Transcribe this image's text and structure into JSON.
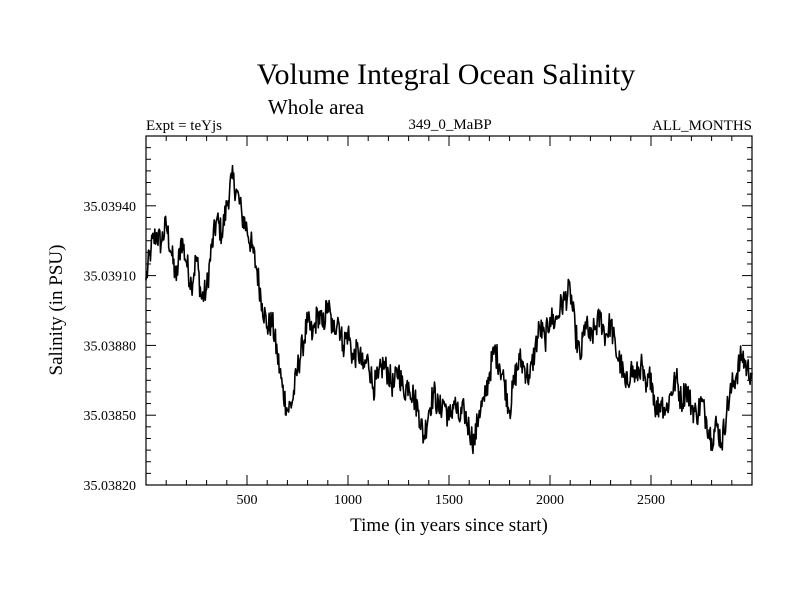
{
  "chart_data": {
    "type": "line",
    "title": "Volume Integral Ocean Salinity",
    "subtitle": "Whole area",
    "header_left": "Expt = teYjs",
    "header_center": "349_0_MaBP",
    "header_right": "ALL_MONTHS",
    "xlabel": "Time (in years since start)",
    "ylabel": "Salinity (in PSU)",
    "xlim": [
      0,
      3000
    ],
    "ylim": [
      35.0382,
      35.0397
    ],
    "x_ticks": [
      500,
      1000,
      1500,
      2000,
      2500
    ],
    "y_ticks": [
      35.0382,
      35.0385,
      35.0388,
      35.0391,
      35.0394
    ],
    "y_tick_labels": [
      "35.03820",
      "35.03850",
      "35.03880",
      "35.03910",
      "35.03940"
    ],
    "grid": false,
    "series": [
      {
        "name": "Salinity",
        "points": [
          [
            0,
            35.03908
          ],
          [
            25,
            35.03922
          ],
          [
            50,
            35.03928
          ],
          [
            75,
            35.03924
          ],
          [
            100,
            35.03932
          ],
          [
            125,
            35.0392
          ],
          [
            150,
            35.03908
          ],
          [
            175,
            35.03926
          ],
          [
            200,
            35.03916
          ],
          [
            225,
            35.03906
          ],
          [
            250,
            35.03918
          ],
          [
            275,
            35.039
          ],
          [
            300,
            35.03904
          ],
          [
            325,
            35.03922
          ],
          [
            350,
            35.03934
          ],
          [
            375,
            35.03928
          ],
          [
            400,
            35.0394
          ],
          [
            425,
            35.03952
          ],
          [
            450,
            35.03946
          ],
          [
            475,
            35.03936
          ],
          [
            500,
            35.0393
          ],
          [
            525,
            35.03922
          ],
          [
            550,
            35.03912
          ],
          [
            575,
            35.03898
          ],
          [
            600,
            35.03888
          ],
          [
            625,
            35.0389
          ],
          [
            650,
            35.03876
          ],
          [
            675,
            35.03862
          ],
          [
            700,
            35.03852
          ],
          [
            725,
            35.03856
          ],
          [
            750,
            35.0387
          ],
          [
            775,
            35.0388
          ],
          [
            800,
            35.0389
          ],
          [
            825,
            35.03884
          ],
          [
            850,
            35.03894
          ],
          [
            875,
            35.03888
          ],
          [
            900,
            35.03898
          ],
          [
            925,
            35.03886
          ],
          [
            950,
            35.03892
          ],
          [
            975,
            35.0388
          ],
          [
            1000,
            35.03886
          ],
          [
            1025,
            35.03874
          ],
          [
            1050,
            35.03878
          ],
          [
            1075,
            35.0387
          ],
          [
            1100,
            35.03874
          ],
          [
            1125,
            35.03862
          ],
          [
            1150,
            35.03866
          ],
          [
            1175,
            35.03872
          ],
          [
            1200,
            35.03868
          ],
          [
            1225,
            35.03862
          ],
          [
            1250,
            35.0387
          ],
          [
            1275,
            35.0386
          ],
          [
            1300,
            35.03864
          ],
          [
            1325,
            35.03858
          ],
          [
            1350,
            35.03852
          ],
          [
            1375,
            35.0384
          ],
          [
            1400,
            35.03852
          ],
          [
            1425,
            35.0386
          ],
          [
            1450,
            35.03852
          ],
          [
            1475,
            35.03856
          ],
          [
            1500,
            35.03848
          ],
          [
            1525,
            35.03856
          ],
          [
            1550,
            35.03848
          ],
          [
            1575,
            35.03852
          ],
          [
            1600,
            35.03844
          ],
          [
            1625,
            35.03838
          ],
          [
            1650,
            35.03852
          ],
          [
            1675,
            35.03856
          ],
          [
            1700,
            35.03868
          ],
          [
            1725,
            35.03878
          ],
          [
            1750,
            35.03872
          ],
          [
            1775,
            35.03864
          ],
          [
            1800,
            35.03852
          ],
          [
            1825,
            35.03866
          ],
          [
            1850,
            35.03874
          ],
          [
            1875,
            35.0387
          ],
          [
            1900,
            35.03866
          ],
          [
            1925,
            35.03878
          ],
          [
            1950,
            35.03888
          ],
          [
            1975,
            35.03882
          ],
          [
            2000,
            35.03892
          ],
          [
            2025,
            35.0389
          ],
          [
            2050,
            35.03896
          ],
          [
            2075,
            35.039
          ],
          [
            2100,
            35.03904
          ],
          [
            2125,
            35.03886
          ],
          [
            2150,
            35.03874
          ],
          [
            2175,
            35.0389
          ],
          [
            2200,
            35.03882
          ],
          [
            2225,
            35.03888
          ],
          [
            2250,
            35.03892
          ],
          [
            2275,
            35.03884
          ],
          [
            2300,
            35.0389
          ],
          [
            2325,
            35.03878
          ],
          [
            2350,
            35.03872
          ],
          [
            2375,
            35.03862
          ],
          [
            2400,
            35.0387
          ],
          [
            2425,
            35.03866
          ],
          [
            2450,
            35.03872
          ],
          [
            2475,
            35.0386
          ],
          [
            2500,
            35.03868
          ],
          [
            2525,
            35.03852
          ],
          [
            2550,
            35.03856
          ],
          [
            2575,
            35.03852
          ],
          [
            2600,
            35.0386
          ],
          [
            2625,
            35.03866
          ],
          [
            2650,
            35.03856
          ],
          [
            2675,
            35.03862
          ],
          [
            2700,
            35.03854
          ],
          [
            2725,
            35.0385
          ],
          [
            2750,
            35.03856
          ],
          [
            2775,
            35.03848
          ],
          [
            2800,
            35.0384
          ],
          [
            2825,
            35.03846
          ],
          [
            2850,
            35.03838
          ],
          [
            2875,
            35.03852
          ],
          [
            2900,
            35.03862
          ],
          [
            2925,
            35.03868
          ],
          [
            2950,
            35.03876
          ],
          [
            2975,
            35.0387
          ],
          [
            3000,
            35.03868
          ]
        ]
      }
    ]
  }
}
